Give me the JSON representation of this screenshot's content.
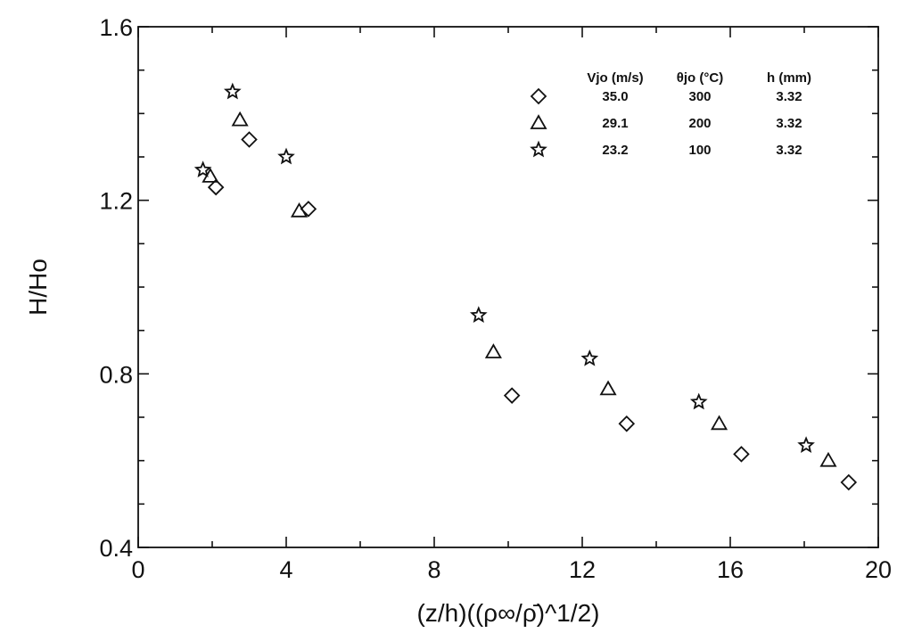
{
  "chart_data": {
    "type": "scatter",
    "title": "",
    "xlabel": "(z/h)((ρ∞/ρ̄)^1/2)",
    "ylabel": "H/Ho",
    "xlim": [
      0,
      20
    ],
    "ylim": [
      0.4,
      1.6
    ],
    "x_ticks": [
      0,
      4,
      8,
      12,
      16,
      20
    ],
    "y_ticks": [
      0.4,
      0.8,
      1.2,
      1.6
    ],
    "x_tick_labels": [
      "0",
      "4",
      "8",
      "12",
      "16",
      "20"
    ],
    "y_tick_labels": [
      "0.4",
      "0.8",
      "1.2",
      "1.6"
    ],
    "grid": false,
    "legend": {
      "placement": "top-right",
      "headers": [
        "Vjo (m/s)",
        "θjo (°C)",
        "h (mm)"
      ],
      "rows": [
        {
          "marker": "diamond",
          "values": [
            "35.0",
            "300",
            "3.32"
          ]
        },
        {
          "marker": "triangle",
          "values": [
            "29.1",
            "200",
            "3.32"
          ]
        },
        {
          "marker": "star",
          "values": [
            "23.2",
            "100",
            "3.32"
          ]
        }
      ]
    },
    "series": [
      {
        "marker": "diamond",
        "points": [
          [
            2.1,
            1.23
          ],
          [
            3.0,
            1.34
          ],
          [
            4.6,
            1.18
          ],
          [
            10.1,
            0.75
          ],
          [
            13.2,
            0.685
          ],
          [
            16.3,
            0.615
          ],
          [
            19.2,
            0.55
          ]
        ]
      },
      {
        "marker": "triangle",
        "points": [
          [
            1.95,
            1.255
          ],
          [
            2.75,
            1.385
          ],
          [
            4.35,
            1.175
          ],
          [
            9.6,
            0.85
          ],
          [
            12.7,
            0.765
          ],
          [
            15.7,
            0.685
          ],
          [
            18.65,
            0.6
          ]
        ]
      },
      {
        "marker": "star",
        "points": [
          [
            1.75,
            1.27
          ],
          [
            2.55,
            1.45
          ],
          [
            4.0,
            1.3
          ],
          [
            9.2,
            0.935
          ],
          [
            12.2,
            0.835
          ],
          [
            15.15,
            0.735
          ],
          [
            18.05,
            0.635
          ]
        ]
      }
    ]
  }
}
